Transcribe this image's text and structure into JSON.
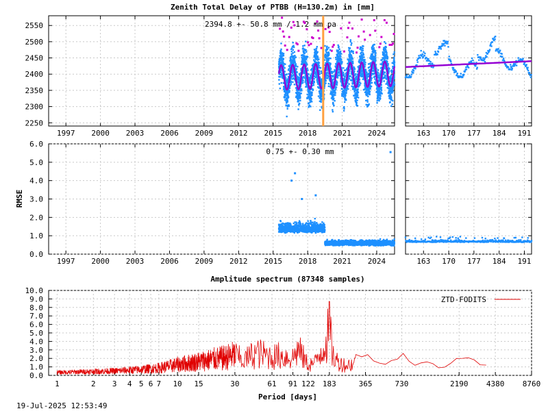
{
  "figure": {
    "title": "Zenith Total Delay of PTBB (H=130.2m) in [mm]",
    "timestamp": "19-Jul-2025 12:53:49"
  },
  "chart_data": [
    {
      "id": "ztd-timeseries",
      "type": "scatter",
      "title": "Zenith Total Delay of PTBB (H=130.2m) in [mm]",
      "annotation": "2394.8 +-  50.8 mm /  1.2 mm pa",
      "xlabel": "",
      "ylabel": "",
      "xlim": [
        1995.5,
        2025.55
      ],
      "ylim": [
        2240,
        2580
      ],
      "xticks": [
        "1997",
        "2000",
        "2003",
        "2006",
        "2009",
        "2012",
        "2015",
        "2018",
        "2021",
        "2024"
      ],
      "yticks": [
        "2250",
        "2300",
        "2350",
        "2400",
        "2450",
        "2500",
        "2550"
      ],
      "data_start": 2015.5,
      "data_end": 2025.55,
      "mean": 2394.8,
      "sigma": 50.8,
      "trend_per_year": 1.2,
      "seasonal_amplitude": 45,
      "marker_year": 2019.35,
      "grid": true,
      "colors": {
        "points": "#1e90ff",
        "model": "#9400d3",
        "outliers": "#cc00cc",
        "marker": "#ffa040"
      }
    },
    {
      "id": "ztd-zoom",
      "type": "scatter",
      "xlim": [
        158,
        193
      ],
      "ylim": [
        2240,
        2580
      ],
      "xticks": [
        "163",
        "170",
        "177",
        "184",
        "191"
      ],
      "values_range": [
        2390,
        2520
      ],
      "model_start": 2422,
      "model_end": 2440,
      "grid": true,
      "colors": {
        "points": "#1e90ff",
        "model": "#9400d3"
      }
    },
    {
      "id": "rmse-timeseries",
      "type": "scatter",
      "annotation": "0.75 +-  0.30 mm",
      "ylabel": "RMSE",
      "xlim": [
        1995.5,
        2025.55
      ],
      "ylim": [
        0,
        6
      ],
      "xticks": [
        "1997",
        "2000",
        "2003",
        "2006",
        "2009",
        "2012",
        "2015",
        "2018",
        "2021",
        "2024"
      ],
      "yticks": [
        "0.0",
        "1.0",
        "2.0",
        "3.0",
        "4.0",
        "5.0",
        "6.0"
      ],
      "mean": 0.75,
      "sigma": 0.3,
      "early_level": 1.3,
      "late_level": 0.6,
      "change_year": 2019.5,
      "outliers": [
        [
          2016.6,
          4.0
        ],
        [
          2016.9,
          4.4
        ],
        [
          2017.5,
          3.0
        ],
        [
          2018.7,
          3.2
        ]
      ],
      "grid": true,
      "colors": {
        "points": "#1e90ff"
      }
    },
    {
      "id": "rmse-zoom",
      "type": "scatter",
      "xlim": [
        158,
        193
      ],
      "ylim": [
        0,
        6
      ],
      "xticks": [
        "163",
        "170",
        "177",
        "184",
        "191"
      ],
      "level": 0.65,
      "grid": true,
      "colors": {
        "points": "#1e90ff"
      }
    },
    {
      "id": "amplitude-spectrum",
      "type": "line",
      "title": "Amplitude spectrum (87348 samples)",
      "xlabel": "Period [days]",
      "ylabel": "",
      "x_scale": "log",
      "xlim": [
        0.85,
        8760
      ],
      "ylim": [
        0,
        10
      ],
      "xticks": [
        "1",
        "2",
        "3",
        "4",
        "5",
        "6",
        "7",
        "10",
        "15",
        "30",
        "61",
        "91",
        "122",
        "183",
        "365",
        "730",
        "2190",
        "4380",
        "8760"
      ],
      "xtick_values": [
        1,
        2,
        3,
        4,
        5,
        6,
        7,
        10,
        15,
        30,
        61,
        91,
        122,
        183,
        365,
        730,
        2190,
        4380,
        8760
      ],
      "yticks": [
        "0.0",
        "1.0",
        "2.0",
        "3.0",
        "4.0",
        "5.0",
        "6.0",
        "7.0",
        "8.0",
        "9.0",
        "10.0"
      ],
      "series": [
        {
          "name": "ZTD-FODITS",
          "color": "#e00000",
          "peaks": [
            [
              1.0,
              0.6
            ],
            [
              2.0,
              0.8
            ],
            [
              3.0,
              0.9
            ],
            [
              5.0,
              1.2
            ],
            [
              7.0,
              1.5
            ],
            [
              10.0,
              2.2
            ],
            [
              15.0,
              2.8
            ],
            [
              20.0,
              3.3
            ],
            [
              25.0,
              3.6
            ],
            [
              30.0,
              4.2
            ],
            [
              35.0,
              3.0
            ],
            [
              45.0,
              4.6
            ],
            [
              61.0,
              3.8
            ],
            [
              70.0,
              4.0
            ],
            [
              91.0,
              3.6
            ],
            [
              100.0,
              5.3
            ],
            [
              122.0,
              2.2
            ],
            [
              140.0,
              2.6
            ],
            [
              183.0,
              8.7
            ],
            [
              200.0,
              3.3
            ],
            [
              250.0,
              2.0
            ],
            [
              300.0,
              2.6
            ],
            [
              365.0,
              3.2
            ],
            [
              500.0,
              1.2
            ],
            [
              730.0,
              3.0
            ],
            [
              900.0,
              1.5
            ],
            [
              1200.0,
              2.3
            ],
            [
              1500.0,
              0.9
            ],
            [
              2190.0,
              2.5
            ],
            [
              4000.0,
              1.3
            ]
          ]
        }
      ],
      "legend": "top-right",
      "grid": true
    }
  ]
}
